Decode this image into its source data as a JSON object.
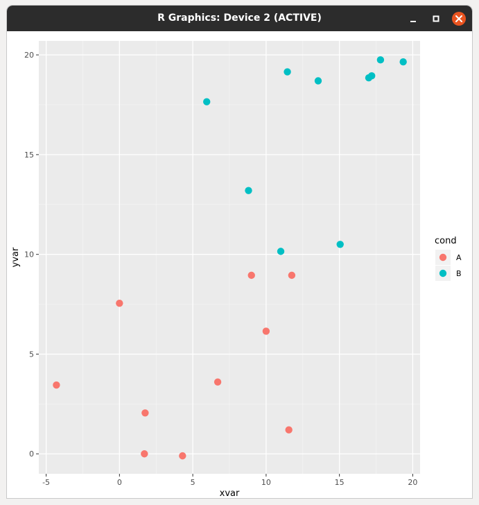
{
  "window": {
    "title": "R Graphics: Device 2 (ACTIVE)",
    "controls": {
      "minimize_icon": "minimize-icon",
      "maximize_icon": "maximize-icon",
      "close_icon": "close-icon",
      "close_color": "#e95420"
    }
  },
  "chart_data": {
    "type": "scatter",
    "title": "",
    "xlabel": "xvar",
    "ylabel": "yvar",
    "xlim": [
      -5.5,
      20.5
    ],
    "ylim": [
      -1.0,
      20.7
    ],
    "x_ticks": [
      -5,
      0,
      5,
      10,
      15,
      20
    ],
    "y_ticks": [
      0,
      5,
      10,
      15,
      20
    ],
    "x_tick_labels": [
      "-5",
      "0",
      "5",
      "10",
      "15",
      "20"
    ],
    "y_tick_labels": [
      "0",
      "5",
      "10",
      "15",
      "20"
    ],
    "grid": true,
    "panel_background": "#ebebeb",
    "legend": {
      "title": "cond",
      "position": "right",
      "entries": [
        {
          "label": "A",
          "color": "#f8766d"
        },
        {
          "label": "B",
          "color": "#00bfc4"
        }
      ]
    },
    "series": [
      {
        "name": "A",
        "color": "#f8766d",
        "points": [
          {
            "x": -4.3,
            "y": 3.45
          },
          {
            "x": 0.0,
            "y": 7.55
          },
          {
            "x": 1.75,
            "y": 2.05
          },
          {
            "x": 1.7,
            "y": 0.0
          },
          {
            "x": 4.3,
            "y": -0.1
          },
          {
            "x": 6.7,
            "y": 3.6
          },
          {
            "x": 9.0,
            "y": 8.95
          },
          {
            "x": 10.0,
            "y": 6.15
          },
          {
            "x": 11.75,
            "y": 8.95
          },
          {
            "x": 11.55,
            "y": 1.2
          }
        ]
      },
      {
        "name": "B",
        "color": "#00bfc4",
        "points": [
          {
            "x": 5.95,
            "y": 17.65
          },
          {
            "x": 8.8,
            "y": 13.2
          },
          {
            "x": 11.0,
            "y": 10.15
          },
          {
            "x": 11.45,
            "y": 19.15
          },
          {
            "x": 13.55,
            "y": 18.7
          },
          {
            "x": 15.05,
            "y": 10.5
          },
          {
            "x": 17.0,
            "y": 18.85
          },
          {
            "x": 17.2,
            "y": 18.95
          },
          {
            "x": 17.8,
            "y": 19.75
          },
          {
            "x": 19.35,
            "y": 19.65
          }
        ]
      }
    ]
  }
}
